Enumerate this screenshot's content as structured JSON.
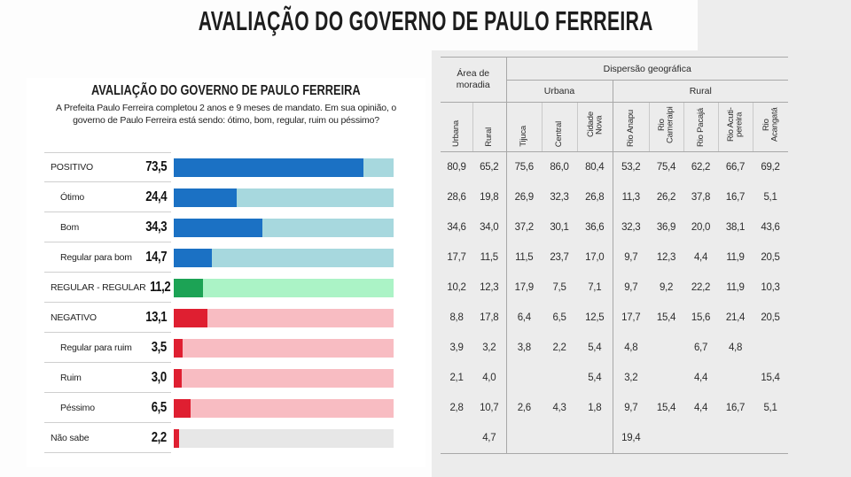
{
  "page_title": "AVALIAÇÃO DO GOVERNO DE PAULO FERREIRA",
  "chart_data": {
    "type": "bar",
    "title": "AVALIAÇÃO DO GOVERNO DE PAULO FERREIRA",
    "subtitle": "A Prefeita Paulo Ferreira completou 2 anos e 9 meses de mandato. Em sua opinião, o governo de Paulo Ferreira está sendo: ótimo, bom, regular, ruim ou péssimo?",
    "orientation": "horizontal",
    "xlim": [
      0,
      85
    ],
    "rows": [
      {
        "label": "POSITIVO",
        "value": 73.5,
        "display": "73,5",
        "group": "positive",
        "indent": false
      },
      {
        "label": "Ótimo",
        "value": 24.4,
        "display": "24,4",
        "group": "positive",
        "indent": true
      },
      {
        "label": "Bom",
        "value": 34.3,
        "display": "34,3",
        "group": "positive",
        "indent": true
      },
      {
        "label": "Regular para bom",
        "value": 14.7,
        "display": "14,7",
        "group": "positive",
        "indent": true
      },
      {
        "label": "REGULAR - REGULAR",
        "value": 11.2,
        "display": "11,2",
        "group": "neutral",
        "indent": false
      },
      {
        "label": "NEGATIVO",
        "value": 13.1,
        "display": "13,1",
        "group": "negative",
        "indent": false
      },
      {
        "label": "Regular para ruim",
        "value": 3.5,
        "display": "3,5",
        "group": "negative",
        "indent": true
      },
      {
        "label": "Ruim",
        "value": 3.0,
        "display": "3,0",
        "group": "negative",
        "indent": true
      },
      {
        "label": "Péssimo",
        "value": 6.5,
        "display": "6,5",
        "group": "negative",
        "indent": true
      },
      {
        "label": "Não sabe",
        "value": 2.2,
        "display": "2,2",
        "group": "unknown",
        "indent": false
      }
    ],
    "colors": {
      "positive": {
        "fill": "#1b71c4",
        "track": "#a7d8de"
      },
      "neutral": {
        "fill": "#1ca355",
        "track": "#abf3c6"
      },
      "negative": {
        "fill": "#df1f31",
        "track": "#f8bcc2"
      },
      "unknown": {
        "fill": "#df1f31",
        "track": "#e7e7e7"
      }
    }
  },
  "table": {
    "group_headers": {
      "area": "Área de moradia",
      "dispersao": "Dispersão geográfica",
      "urbana": "Urbana",
      "rural": "Rural"
    },
    "columns": [
      "Urbana",
      "Rural",
      "Tijuca",
      "Central",
      "Cidade Nova",
      "Rio Anapu",
      "Rio Cameraipi",
      "Rio Pacajá",
      "Rio Acuti-pereira",
      "Rio Acangatá"
    ],
    "rows": [
      [
        "80,9",
        "65,2",
        "75,6",
        "86,0",
        "80,4",
        "53,2",
        "75,4",
        "62,2",
        "66,7",
        "69,2"
      ],
      [
        "28,6",
        "19,8",
        "26,9",
        "32,3",
        "26,8",
        "11,3",
        "26,2",
        "37,8",
        "16,7",
        "5,1"
      ],
      [
        "34,6",
        "34,0",
        "37,2",
        "30,1",
        "36,6",
        "32,3",
        "36,9",
        "20,0",
        "38,1",
        "43,6"
      ],
      [
        "17,7",
        "11,5",
        "11,5",
        "23,7",
        "17,0",
        "9,7",
        "12,3",
        "4,4",
        "11,9",
        "20,5"
      ],
      [
        "10,2",
        "12,3",
        "17,9",
        "7,5",
        "7,1",
        "9,7",
        "9,2",
        "22,2",
        "11,9",
        "10,3"
      ],
      [
        "8,8",
        "17,8",
        "6,4",
        "6,5",
        "12,5",
        "17,7",
        "15,4",
        "15,6",
        "21,4",
        "20,5"
      ],
      [
        "3,9",
        "3,2",
        "3,8",
        "2,2",
        "5,4",
        "4,8",
        "",
        "6,7",
        "4,8",
        ""
      ],
      [
        "2,1",
        "4,0",
        "",
        "",
        "5,4",
        "3,2",
        "",
        "4,4",
        "",
        "15,4"
      ],
      [
        "2,8",
        "10,7",
        "2,6",
        "4,3",
        "1,8",
        "9,7",
        "15,4",
        "4,4",
        "16,7",
        "5,1"
      ],
      [
        "",
        "4,7",
        "",
        "",
        "",
        "19,4",
        "",
        "",
        "",
        ""
      ]
    ]
  }
}
